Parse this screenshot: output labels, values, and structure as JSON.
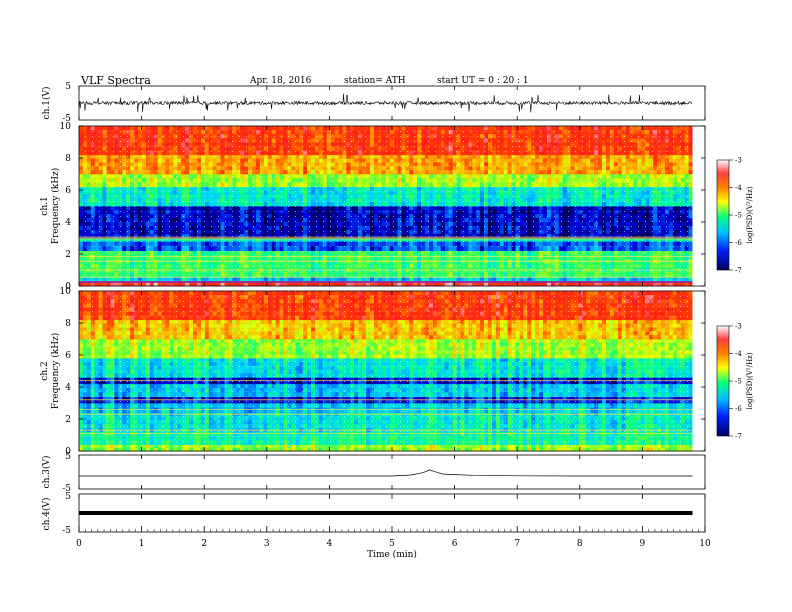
{
  "header": {
    "title": "VLF  Spectra",
    "date": "Apr. 18, 2016",
    "station": "station= ATH",
    "start": "start  UT  =   0  : 20 : 1"
  },
  "colorbar": {
    "label": "log(PSD)(V²/Hz)",
    "range": [
      -7,
      -3
    ],
    "ticks": [
      "-3",
      "-4",
      "-5",
      "-6",
      "-7"
    ]
  },
  "chart_data": [
    {
      "type": "line",
      "panel": "ch1-waveform",
      "ylabel": "ch.1(V)",
      "ylim": [
        -5,
        5
      ],
      "yticks": [
        "5",
        "-5"
      ],
      "description_values": {
        "baseline": 0,
        "typical_amplitude": 0.8,
        "spike_amplitude": 2.5
      }
    },
    {
      "type": "heatmap",
      "panel": "ch1-spectrogram",
      "ylabel_top": "ch.1",
      "ylabel": "Frequency (kHz)",
      "ylim": [
        0,
        10
      ],
      "yticks": [
        "0",
        "2",
        "4",
        "6",
        "8",
        "10"
      ],
      "bands": [
        {
          "f_from": 0,
          "f_to": 0.3,
          "level": -3.5
        },
        {
          "f_from": 0.3,
          "f_to": 0.6,
          "level": -5.8
        },
        {
          "f_from": 0.6,
          "f_to": 2.2,
          "level": -5.2
        },
        {
          "f_from": 2.2,
          "f_to": 2.8,
          "level": -6.3
        },
        {
          "f_from": 2.8,
          "f_to": 3.0,
          "level": -5.5
        },
        {
          "f_from": 3.0,
          "f_to": 5.0,
          "level": -6.7
        },
        {
          "f_from": 5.0,
          "f_to": 6.2,
          "level": -5.6
        },
        {
          "f_from": 6.2,
          "f_to": 7.0,
          "level": -4.8
        },
        {
          "f_from": 7.0,
          "f_to": 8.2,
          "level": -4.2
        },
        {
          "f_from": 8.2,
          "f_to": 10.0,
          "level": -3.7
        }
      ],
      "lines_khz": [
        0.25,
        0.55,
        1.0,
        1.55,
        1.85,
        2.95,
        3.05
      ]
    },
    {
      "type": "heatmap",
      "panel": "ch2-spectrogram",
      "ylabel_top": "ch.2",
      "ylabel": "Frequency (kHz)",
      "ylim": [
        0,
        10
      ],
      "yticks": [
        "0",
        "2",
        "4",
        "6",
        "8",
        "10"
      ],
      "bands": [
        {
          "f_from": 0,
          "f_to": 0.4,
          "level": -4.8
        },
        {
          "f_from": 0.4,
          "f_to": 1.2,
          "level": -5.4
        },
        {
          "f_from": 1.2,
          "f_to": 2.4,
          "level": -5.6
        },
        {
          "f_from": 2.4,
          "f_to": 3.0,
          "level": -5.8
        },
        {
          "f_from": 3.0,
          "f_to": 3.4,
          "level": -6.5
        },
        {
          "f_from": 3.4,
          "f_to": 4.2,
          "level": -5.8
        },
        {
          "f_from": 4.2,
          "f_to": 4.6,
          "level": -6.6
        },
        {
          "f_from": 4.6,
          "f_to": 5.8,
          "level": -5.6
        },
        {
          "f_from": 5.8,
          "f_to": 7.0,
          "level": -4.8
        },
        {
          "f_from": 7.0,
          "f_to": 8.2,
          "level": -4.3
        },
        {
          "f_from": 8.2,
          "f_to": 10.0,
          "level": -3.7
        }
      ],
      "lines_khz": [
        1.1,
        1.3,
        2.3,
        2.6,
        3.2,
        4.4
      ]
    },
    {
      "type": "line",
      "panel": "ch3",
      "ylabel": "ch.3(V)",
      "ylim": [
        -5,
        5
      ],
      "yticks": [
        "5",
        "-5"
      ],
      "x": [
        0,
        1,
        2,
        3,
        4,
        5,
        5.3,
        5.5,
        5.6,
        5.7,
        5.8,
        6.0,
        6.3,
        7,
        8,
        9,
        9.8
      ],
      "y": [
        0,
        0,
        0,
        0,
        0,
        0,
        0.3,
        1.0,
        1.8,
        1.2,
        0.6,
        0.4,
        0.2,
        0.05,
        0,
        0,
        0
      ]
    },
    {
      "type": "line",
      "panel": "ch4",
      "ylabel": "ch.4(V)",
      "ylim": [
        -5,
        5
      ],
      "yticks": [
        "5",
        "-5"
      ],
      "x": [
        0,
        9.8
      ],
      "y": [
        0,
        0
      ]
    },
    {
      "type": "axis",
      "panel": "time-axis",
      "xlabel": "Time  (min)",
      "xlim": [
        0,
        10
      ],
      "xticks": [
        "0",
        "1",
        "2",
        "3",
        "4",
        "5",
        "6",
        "7",
        "8",
        "9",
        "10"
      ]
    }
  ]
}
